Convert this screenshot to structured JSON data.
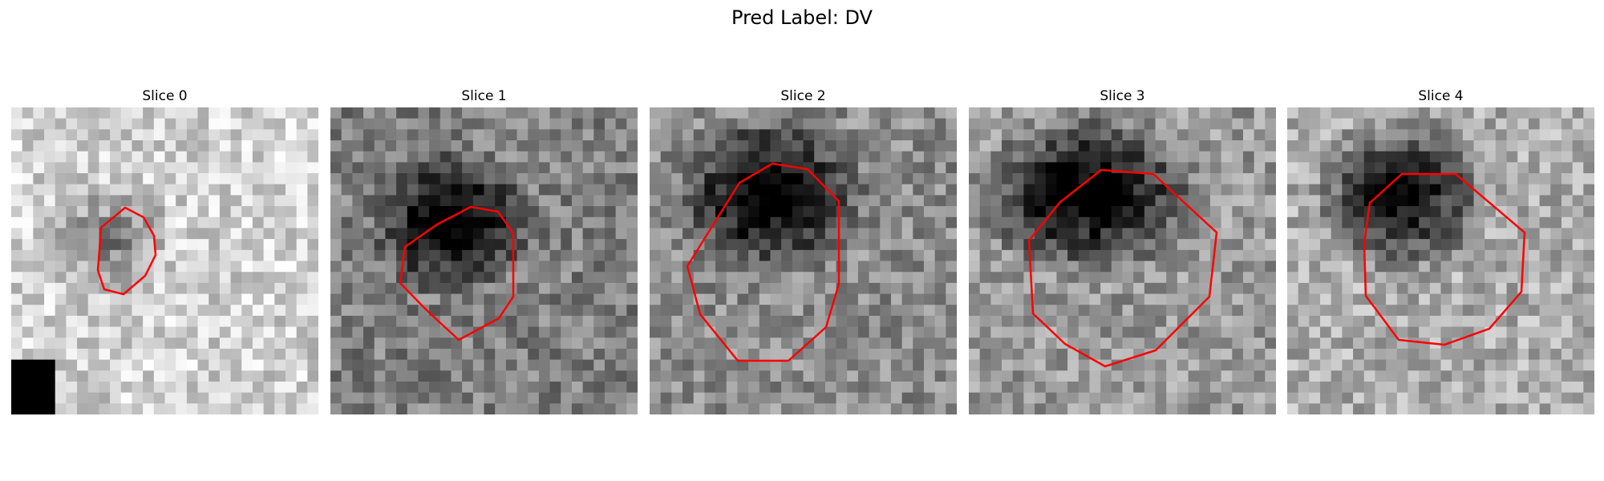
{
  "figure": {
    "title": "Pred Label: DV",
    "contour_color": "#ff0000"
  },
  "panels": [
    {
      "title": "Slice 0",
      "region": [
        6,
        9.5,
        11,
        14
      ],
      "center_darkness": 0.35,
      "background": 0.82
    },
    {
      "title": "Slice 1",
      "region": [
        7,
        7,
        14,
        13
      ],
      "center_darkness": 0.7,
      "background": 0.5
    },
    {
      "title": "Slice 2",
      "region": [
        6,
        4,
        15,
        11
      ],
      "center_darkness": 0.75,
      "background": 0.55
    },
    {
      "title": "Slice 3",
      "region": [
        5,
        4,
        16,
        11
      ],
      "center_darkness": 0.8,
      "background": 0.6
    },
    {
      "title": "Slice 4",
      "region": [
        6,
        4,
        14,
        11
      ],
      "center_darkness": 0.8,
      "background": 0.68
    }
  ]
}
